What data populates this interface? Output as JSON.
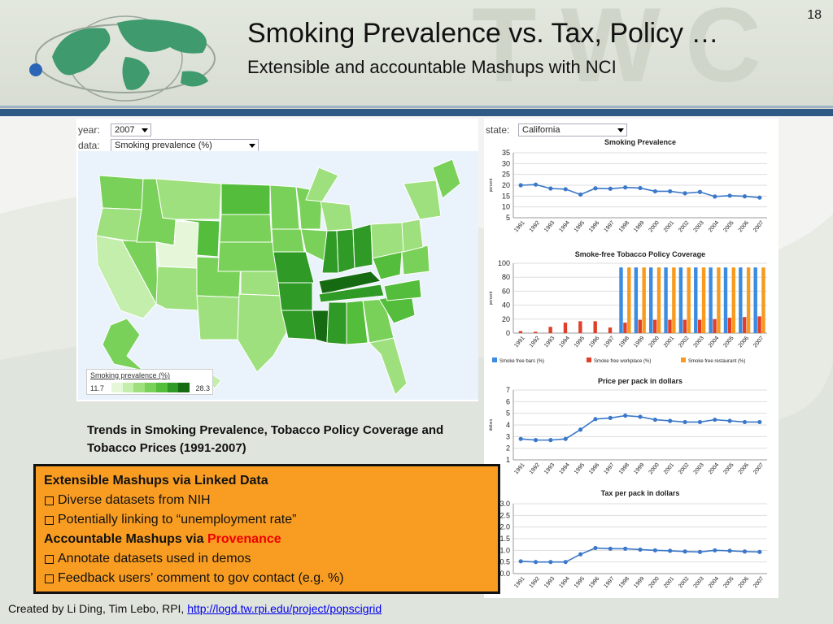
{
  "slide": {
    "number": "18",
    "title": "Smoking Prevalence vs. Tax, Policy …",
    "subtitle": "Extensible and accountable Mashups with NCI",
    "watermark": "TWC"
  },
  "map_panel": {
    "year_label": "year:",
    "year_value": "2007",
    "data_label": "data:",
    "data_value": "Smoking prevalence (%)",
    "legend_title": "Smoking prevalence (%)",
    "legend_min": "11.7",
    "legend_max": "28.3",
    "legend_colors": [
      "#e6f7d9",
      "#c4eeab",
      "#9fe07e",
      "#7ad159",
      "#54bd3b",
      "#2f9a25",
      "#166b12"
    ]
  },
  "state_panel": {
    "state_label": "state:",
    "state_value": "California"
  },
  "caption": "Trends in Smoking Prevalence, Tobacco Policy Coverage and Tobacco Prices (1991-2007)",
  "box": {
    "heading1": "Extensible Mashups via Linked Data",
    "bullet1": "Diverse datasets from NIH",
    "bullet2": "Potentially linking to “unemployment rate”",
    "heading2_prefix": "Accountable Mashups via ",
    "heading2_red": "Provenance",
    "bullet3": "Annotate datasets used in demos",
    "bullet4": "Feedback users’ comment to gov contact (e.g. %)"
  },
  "footer": {
    "credit": "Created by Li Ding, Tim Lebo, RPI, ",
    "link": "http://logd.tw.rpi.edu/project/popscigrid"
  },
  "chart_data": [
    {
      "type": "line",
      "title": "Smoking Prevalence",
      "ylabel": "percent",
      "x": [
        "1991",
        "1992",
        "1993",
        "1994",
        "1995",
        "1996",
        "1997",
        "1998",
        "1999",
        "2000",
        "2001",
        "2002",
        "2003",
        "2004",
        "2005",
        "2006",
        "2007"
      ],
      "series": [
        {
          "values": [
            20.0,
            20.3,
            18.5,
            18.2,
            15.7,
            18.6,
            18.4,
            19.0,
            18.7,
            17.2,
            17.2,
            16.3,
            16.9,
            14.8,
            15.2,
            14.9,
            14.3
          ]
        }
      ],
      "ylim": [
        5,
        35
      ],
      "yticks": [
        5,
        10,
        15,
        20,
        25,
        30,
        35
      ],
      "color": "#3b78c9"
    },
    {
      "type": "bar",
      "title": "Smoke-free Tobacco Policy Coverage",
      "ylabel": "percent",
      "categories": [
        "1991",
        "1992",
        "1993",
        "1994",
        "1995",
        "1996",
        "1997",
        "1998",
        "1999",
        "2000",
        "2001",
        "2002",
        "2003",
        "2004",
        "2005",
        "2006",
        "2007"
      ],
      "series": [
        {
          "name": "Smoke free bars (%)",
          "color": "#3b8be0",
          "values": [
            0,
            0,
            0,
            0,
            0,
            0,
            0,
            94,
            94,
            94,
            94,
            94,
            94,
            94,
            94,
            94,
            94
          ]
        },
        {
          "name": "Smoke free workplace (%)",
          "color": "#e0402a",
          "values": [
            3,
            2,
            9,
            15,
            17,
            17,
            8,
            15,
            19,
            19,
            19,
            19,
            19,
            20,
            22,
            23,
            24
          ]
        },
        {
          "name": "Smoke free restaurant (%)",
          "color": "#f79a1e",
          "values": [
            0,
            0,
            0,
            0,
            0,
            0,
            0,
            94,
            94,
            94,
            94,
            94,
            94,
            94,
            94,
            94,
            94
          ]
        }
      ],
      "ylim": [
        0,
        100
      ],
      "yticks": [
        0,
        20,
        40,
        60,
        80,
        100
      ]
    },
    {
      "type": "line",
      "title": "Price per pack in dollars",
      "ylabel": "dollars",
      "x": [
        "1991",
        "1992",
        "1993",
        "1994",
        "1995",
        "1996",
        "1997",
        "1998",
        "1999",
        "2000",
        "2001",
        "2002",
        "2003",
        "2004",
        "2005",
        "2006",
        "2007"
      ],
      "series": [
        {
          "values": [
            2.8,
            2.7,
            2.7,
            2.8,
            3.6,
            4.5,
            4.6,
            4.8,
            4.7,
            4.45,
            4.35,
            4.25,
            4.25,
            4.45,
            4.35,
            4.25,
            4.25
          ]
        }
      ],
      "ylim": [
        1,
        7
      ],
      "yticks": [
        1,
        2,
        3,
        4,
        5,
        6,
        7
      ],
      "color": "#3b78c9"
    },
    {
      "type": "line",
      "title": "Tax per pack in dollars",
      "x": [
        "1991",
        "1992",
        "1993",
        "1994",
        "1995",
        "1996",
        "1997",
        "1998",
        "1999",
        "2000",
        "2001",
        "2002",
        "2003",
        "2004",
        "2005",
        "2006",
        "2007"
      ],
      "series": [
        {
          "values": [
            0.53,
            0.5,
            0.5,
            0.5,
            0.83,
            1.1,
            1.07,
            1.07,
            1.03,
            1.0,
            0.98,
            0.95,
            0.93,
            1.0,
            0.98,
            0.95,
            0.93
          ]
        }
      ],
      "ylim": [
        0,
        3
      ],
      "yticks": [
        "0.0",
        "0.5",
        "1.0",
        "1.5",
        "2.0",
        "2.5",
        "3.0"
      ],
      "color": "#3b78c9"
    }
  ]
}
